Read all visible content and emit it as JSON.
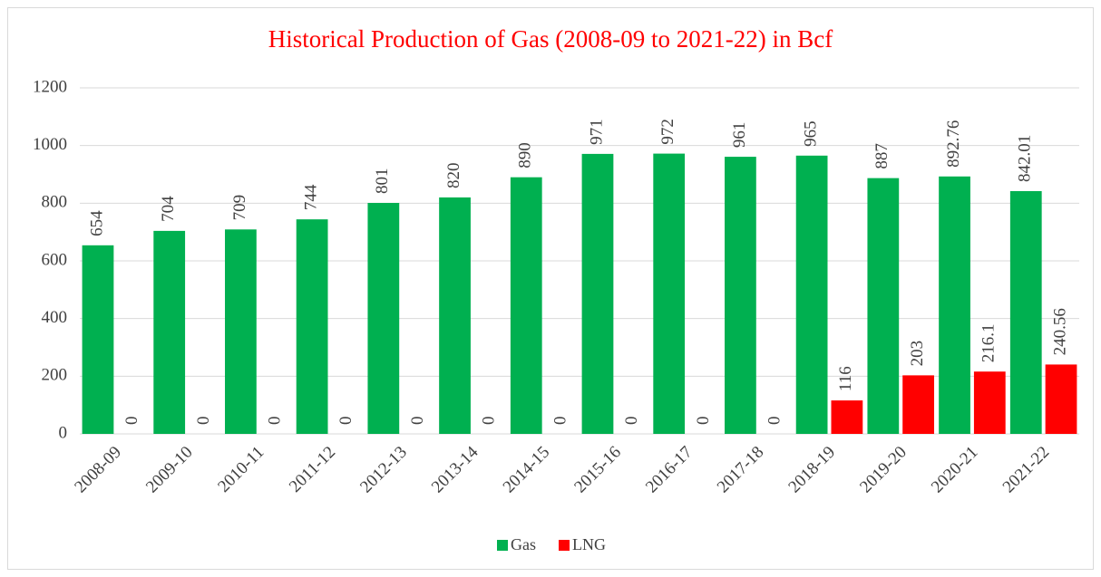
{
  "chart_data": {
    "type": "bar",
    "title": "Historical Production of Gas (2008-09 to 2021-22) in Bcf",
    "categories": [
      "2008-09",
      "2009-10",
      "2010-11",
      "2011-12",
      "2012-13",
      "2013-14",
      "2014-15",
      "2015-16",
      "2016-17",
      "2017-18",
      "2018-19",
      "2019-20",
      "2020-21",
      "2021-22"
    ],
    "series": [
      {
        "name": "Gas",
        "color": "#00b050",
        "values": [
          654,
          704,
          709,
          744,
          801,
          820,
          890,
          971,
          972,
          961,
          965,
          887,
          892.76,
          842.01
        ]
      },
      {
        "name": "LNG",
        "color": "#ff0000",
        "values": [
          0,
          0,
          0,
          0,
          0,
          0,
          0,
          0,
          0,
          0,
          116,
          203,
          216.1,
          240.56
        ]
      }
    ],
    "ylim": [
      0,
      1200
    ],
    "yticks": [
      0,
      200,
      400,
      600,
      800,
      1000,
      1200
    ],
    "grid": true,
    "legend": "bottom"
  }
}
